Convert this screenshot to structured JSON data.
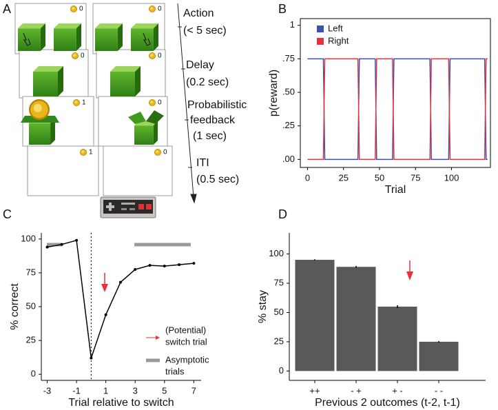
{
  "panels": [
    "A",
    "B",
    "C",
    "D"
  ],
  "diagram": {
    "scores": [
      "0",
      "0",
      "0",
      "0",
      "1",
      "0",
      "1",
      "0"
    ],
    "steps": [
      {
        "lines": [
          "Action",
          "(< 5 sec)"
        ]
      },
      {
        "lines": [
          "Delay",
          "(0.2 sec)"
        ]
      },
      {
        "lines": [
          "Probabilistic",
          "feedback",
          "(1 sec)"
        ]
      },
      {
        "lines": [
          "ITI",
          "(0.5 sec)"
        ]
      }
    ]
  },
  "chart_data": [
    {
      "type": "line",
      "frame": "box",
      "xlabel": "Trial",
      "ylabel": "p(reward)",
      "x": [
        0,
        11,
        12,
        35,
        36,
        47,
        48,
        59,
        60,
        85,
        86,
        98,
        99,
        123,
        124,
        125
      ],
      "series": [
        {
          "name": "Left",
          "color": "#3b50b0",
          "values": [
            0.75,
            0.75,
            0,
            0,
            0.75,
            0.75,
            0,
            0,
            0.75,
            0.75,
            0,
            0,
            0.75,
            0.75,
            0,
            0
          ]
        },
        {
          "name": "Right",
          "color": "#e8313a",
          "values": [
            0,
            0,
            0.75,
            0.75,
            0,
            0,
            0.75,
            0.75,
            0,
            0,
            0.75,
            0.75,
            0,
            0,
            0.75,
            0.75
          ]
        }
      ],
      "xlim": [
        -5,
        127
      ],
      "xticks": [
        0,
        25,
        50,
        75,
        100
      ],
      "ylim": [
        -0.06,
        1.05
      ],
      "yticks": [
        {
          "value": 0,
          "label": ".00"
        },
        {
          "value": 0.25,
          "label": ".25"
        },
        {
          "value": 0.5,
          "label": ".50"
        },
        {
          "value": 0.75,
          "label": ".75"
        },
        1
      ],
      "legend": "top-left"
    },
    {
      "type": "line",
      "frame": "axes",
      "markers": true,
      "color": "#000000",
      "xlabel": "Trial relative to switch",
      "ylabel": "% correct",
      "x": [
        -3,
        -2,
        -1,
        0,
        1,
        2,
        3,
        4,
        5,
        6,
        7
      ],
      "values": [
        94,
        96,
        99,
        12,
        44,
        68,
        77.5,
        80.5,
        80,
        81,
        82
      ],
      "switch_x": 0,
      "xlim": [
        -3.4,
        7.5
      ],
      "xticks": [
        -3,
        -1,
        1,
        3,
        5,
        7
      ],
      "ylim": [
        -4.5,
        104.5
      ],
      "yticks": [
        0,
        25,
        50,
        75,
        100
      ],
      "legend_items": [
        {
          "lines": [
            "(Potential)",
            "switch trial"
          ]
        },
        {
          "lines": [
            "Asymptotic",
            "trials"
          ]
        }
      ]
    },
    {
      "type": "bar",
      "frame": "axes",
      "color": "#595959",
      "xlabel": "Previous 2 outcomes (t-2, t-1)",
      "ylabel": "% stay",
      "categories": [
        "++",
        "- +",
        "+ -",
        "- -"
      ],
      "values": [
        95,
        89,
        55,
        25
      ],
      "errors": [
        0.5,
        0.8,
        1.2,
        0.6
      ],
      "ylim": [
        -8,
        118
      ],
      "yticks": [
        0,
        25,
        50,
        75,
        100
      ]
    }
  ]
}
